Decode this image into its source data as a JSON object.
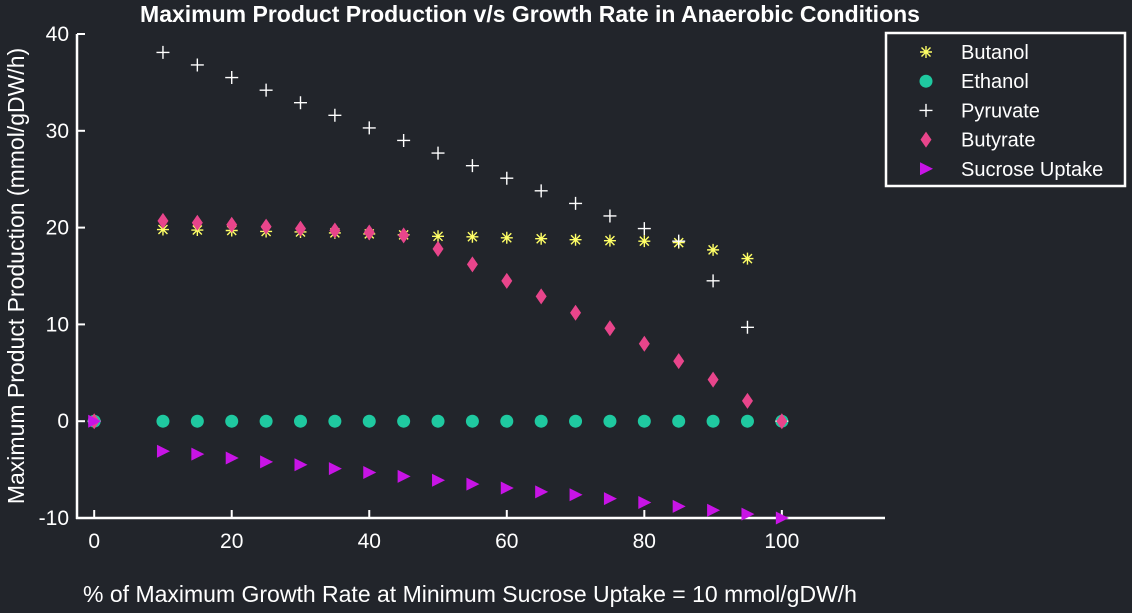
{
  "chart_data": {
    "type": "scatter",
    "title": "Maximum Product Production v/s Growth Rate in Anaerobic Conditions",
    "xlabel": "% of Maximum Growth Rate at Minimum Sucrose Uptake = 10 mmol/gDW/h",
    "ylabel": "Maximum Product Production (mmol/gDW/h)",
    "xlim": [
      -2.5,
      115
    ],
    "ylim": [
      -10,
      40
    ],
    "x_ticks": [
      0,
      20,
      40,
      60,
      80,
      100
    ],
    "x_tick_labels": [
      "0",
      "20",
      "40",
      "60",
      "80",
      "100"
    ],
    "y_ticks": [
      -10,
      0,
      10,
      20,
      30,
      40
    ],
    "y_tick_labels": [
      "-10",
      "0",
      "10",
      "20",
      "30",
      "40"
    ],
    "grid": false,
    "legend_position": "top-right",
    "background": "#22252b",
    "axis_color": "#ffffff",
    "series": [
      {
        "name": "Butanol",
        "marker": "asterisk",
        "color": "#ffff66",
        "x": [
          0,
          10,
          15,
          20,
          25,
          30,
          35,
          40,
          45,
          50,
          55,
          60,
          65,
          70,
          75,
          80,
          85,
          90,
          95
        ],
        "y": [
          0,
          19.8,
          19.75,
          19.7,
          19.6,
          19.55,
          19.45,
          19.35,
          19.25,
          19.1,
          19.05,
          18.95,
          18.85,
          18.75,
          18.65,
          18.6,
          18.45,
          17.7,
          16.8
        ]
      },
      {
        "name": "Ethanol",
        "marker": "circle",
        "color": "#1fc9a0",
        "x": [
          0,
          10,
          15,
          20,
          25,
          30,
          35,
          40,
          45,
          50,
          55,
          60,
          65,
          70,
          75,
          80,
          85,
          90,
          95,
          100
        ],
        "y": [
          0,
          0,
          0,
          0,
          0,
          0,
          0,
          0,
          0,
          0,
          0,
          0,
          0,
          0,
          0,
          0,
          0,
          0,
          0,
          0
        ]
      },
      {
        "name": "Pyruvate",
        "marker": "plus",
        "color": "#ffffff",
        "x": [
          0,
          10,
          15,
          20,
          25,
          30,
          35,
          40,
          45,
          50,
          55,
          60,
          65,
          70,
          75,
          80,
          85,
          90,
          95,
          100
        ],
        "y": [
          0,
          38.1,
          36.8,
          35.5,
          34.2,
          32.9,
          31.6,
          30.3,
          29.0,
          27.7,
          26.4,
          25.1,
          23.8,
          22.5,
          21.2,
          19.9,
          18.6,
          14.5,
          9.7,
          0
        ]
      },
      {
        "name": "Butyrate",
        "marker": "diamond",
        "color": "#e8458b",
        "x": [
          0,
          10,
          15,
          20,
          25,
          30,
          35,
          40,
          45,
          50,
          55,
          60,
          65,
          70,
          75,
          80,
          85,
          90,
          95,
          100
        ],
        "y": [
          0,
          20.7,
          20.5,
          20.3,
          20.1,
          19.9,
          19.7,
          19.5,
          19.2,
          17.8,
          16.2,
          14.5,
          12.9,
          11.2,
          9.6,
          8.0,
          6.2,
          4.3,
          2.1,
          0
        ]
      },
      {
        "name": "Sucrose Uptake",
        "marker": "triangle-right",
        "color": "#c814e6",
        "x": [
          0,
          10,
          15,
          20,
          25,
          30,
          35,
          40,
          45,
          50,
          55,
          60,
          65,
          70,
          75,
          80,
          85,
          90,
          95,
          100
        ],
        "y": [
          0,
          -3.1,
          -3.4,
          -3.8,
          -4.2,
          -4.5,
          -4.9,
          -5.3,
          -5.7,
          -6.1,
          -6.5,
          -6.9,
          -7.3,
          -7.6,
          -8.0,
          -8.4,
          -8.8,
          -9.2,
          -9.6,
          -10.0
        ]
      }
    ]
  }
}
